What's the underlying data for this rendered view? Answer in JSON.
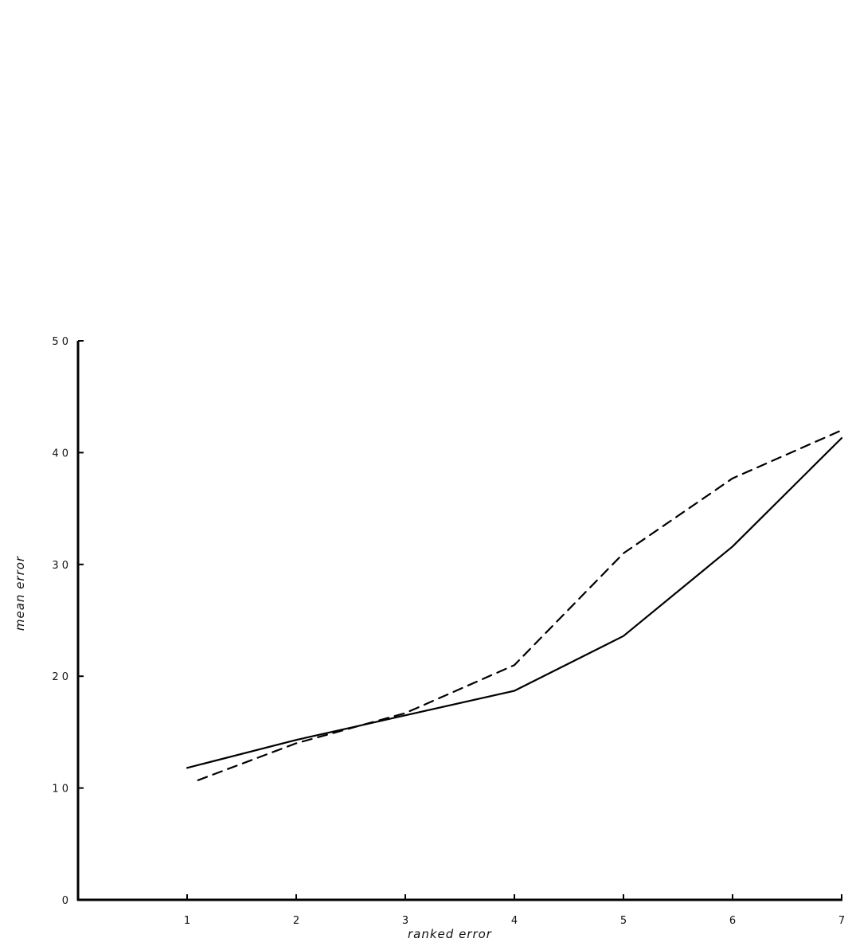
{
  "chart_data": {
    "type": "line",
    "title": "",
    "xlabel": "ranked error",
    "ylabel": "mean error",
    "x": [
      1,
      2,
      3,
      4,
      5,
      6,
      7
    ],
    "x_ticks": [
      "1",
      "2",
      "3",
      "4",
      "5",
      "6",
      "7"
    ],
    "y_ticks": [
      "0",
      "1 0",
      "2 0",
      "3 0",
      "4 0",
      "5 0"
    ],
    "xlim": [
      0,
      7
    ],
    "ylim": [
      0,
      50
    ],
    "grid": false,
    "series": [
      {
        "style": "solid",
        "color": "#000000",
        "points": [
          [
            1.0,
            11.8
          ],
          [
            2.0,
            14.3
          ],
          [
            2.5,
            15.4
          ],
          [
            3.0,
            16.5
          ],
          [
            4.0,
            18.7
          ],
          [
            5.0,
            23.6
          ],
          [
            6.0,
            31.6
          ],
          [
            7.0,
            41.3
          ]
        ]
      },
      {
        "style": "dashed",
        "color": "#000000",
        "points": [
          [
            1.1,
            10.7
          ],
          [
            2.0,
            14.0
          ],
          [
            3.0,
            16.7
          ],
          [
            4.0,
            21.0
          ],
          [
            5.0,
            31.0
          ],
          [
            6.0,
            37.7
          ],
          [
            7.0,
            42.0
          ]
        ]
      }
    ]
  }
}
